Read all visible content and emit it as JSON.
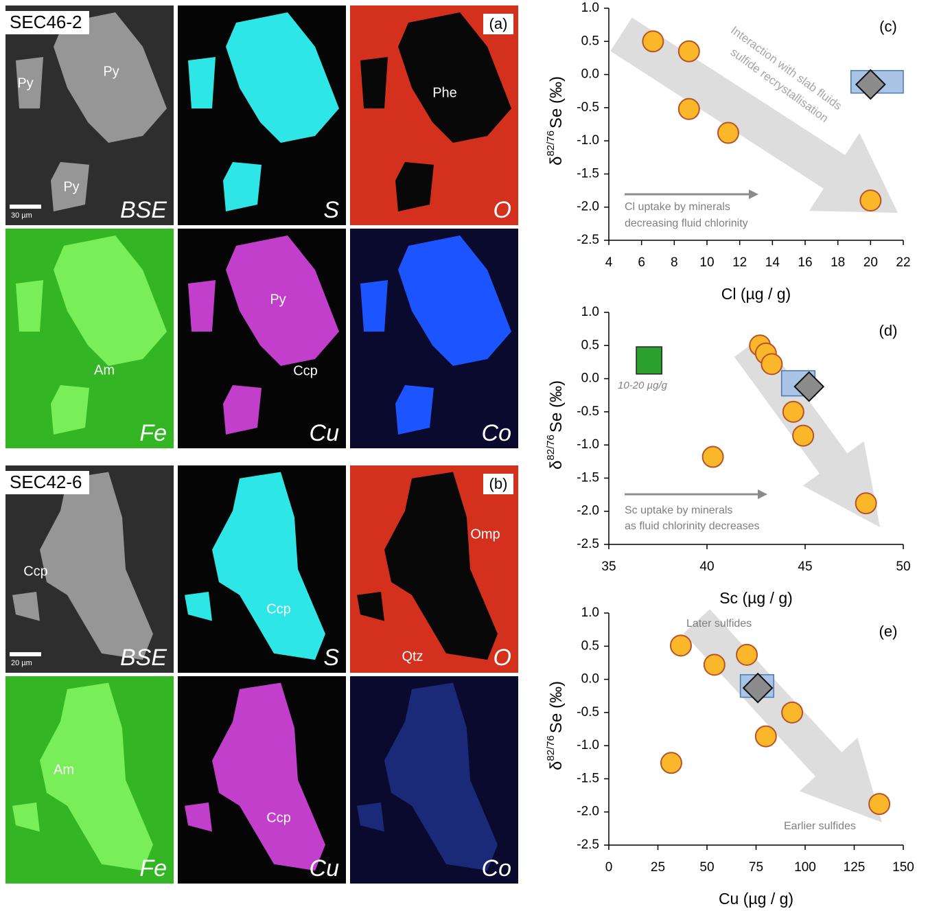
{
  "image_panels": [
    {
      "sample": "SEC46-2",
      "label": "(a)",
      "scale": "30 µm",
      "tiles": [
        {
          "element": "BSE",
          "labels": [
            "Py",
            "Py",
            "Py"
          ]
        },
        {
          "element": "S",
          "labels": []
        },
        {
          "element": "O",
          "labels": [
            "Phe"
          ]
        },
        {
          "element": "Fe",
          "labels": [
            "Am"
          ]
        },
        {
          "element": "Cu",
          "labels": [
            "Py",
            "Ccp"
          ]
        },
        {
          "element": "Co",
          "labels": []
        }
      ]
    },
    {
      "sample": "SEC42-6",
      "label": "(b)",
      "scale": "20 µm",
      "tiles": [
        {
          "element": "BSE",
          "labels": [
            "Ccp"
          ]
        },
        {
          "element": "S",
          "labels": [
            "Ccp"
          ]
        },
        {
          "element": "O",
          "labels": [
            "Omp",
            "Qtz"
          ]
        },
        {
          "element": "Fe",
          "labels": [
            "Am"
          ]
        },
        {
          "element": "Cu",
          "labels": [
            "Ccp"
          ]
        },
        {
          "element": "Co",
          "labels": []
        }
      ]
    }
  ],
  "chart_data": [
    {
      "type": "scatter",
      "panel_label": "(c)",
      "xlabel": "Cl (µg / g)",
      "ylabel": {
        "symbol": "δ",
        "sup": "82/76",
        "main": "Se (‰)"
      },
      "xlim": [
        4,
        22
      ],
      "xticks": [
        4,
        6,
        8,
        10,
        12,
        14,
        16,
        18,
        20,
        22
      ],
      "ylim": [
        -2.5,
        1
      ],
      "yticks": [
        -2.5,
        {
          "value": -2,
          "label": "-2.0"
        },
        -1.5,
        {
          "value": -1,
          "label": "-1.0"
        },
        -0.5,
        {
          "value": 0,
          "label": "0.0"
        },
        0.5,
        {
          "value": 1,
          "label": "1.0"
        }
      ],
      "series": [
        {
          "marker": "circle",
          "color": "#fbb72a",
          "x": [
            6.7,
            8.9,
            8.9,
            11.3,
            20
          ],
          "values": [
            0.5,
            0.35,
            -0.52,
            -0.88,
            -1.9
          ]
        },
        {
          "marker": "diamond",
          "color": "#8c8c8c",
          "x": [
            20
          ],
          "values": [
            -0.15
          ]
        }
      ],
      "ranges": [
        {
          "color": "#a9c4e4",
          "x": [
            18.8,
            22
          ],
          "y": [
            -0.28,
            0.06
          ]
        }
      ],
      "annotations": [
        "Interaction with slab fluids",
        "sulfide recrystallisation",
        "Cl uptake by minerals",
        "decreasing fluid chlorinity"
      ]
    },
    {
      "type": "scatter",
      "panel_label": "(d)",
      "xlabel": "Sc (µg / g)",
      "ylabel": {
        "symbol": "δ",
        "sup": "82/76",
        "main": "Se (‰)"
      },
      "xlim": [
        35,
        50
      ],
      "xticks": [
        35,
        40,
        45,
        50
      ],
      "ylim": [
        -2.5,
        1
      ],
      "yticks": [
        -2.5,
        {
          "value": -2,
          "label": "-2.0"
        },
        -1.5,
        {
          "value": -1,
          "label": "-1.0"
        },
        -0.5,
        {
          "value": 0,
          "label": "0.0"
        },
        0.5,
        {
          "value": 1,
          "label": "1.0"
        }
      ],
      "series": [
        {
          "marker": "circle",
          "color": "#fbb72a",
          "x": [
            42.7,
            43.0,
            43.3,
            44.4,
            44.9,
            40.3,
            48.1
          ],
          "values": [
            0.5,
            0.38,
            0.22,
            -0.5,
            -0.86,
            -1.18,
            -1.88
          ]
        },
        {
          "marker": "diamond",
          "color": "#8c8c8c",
          "x": [
            45.2
          ],
          "values": [
            -0.12
          ]
        }
      ],
      "ranges": [
        {
          "color": "#a9c4e4",
          "x": [
            43.8,
            45.5
          ],
          "y": [
            -0.26,
            0.12
          ]
        },
        {
          "color": "#2ca02c",
          "x": [
            36.4,
            37.7
          ],
          "y": [
            0.07,
            0.48
          ]
        }
      ],
      "annotations": [
        "10-20 µg/g",
        "Sc uptake by minerals",
        "as fluid chlorinity decreases"
      ]
    },
    {
      "type": "scatter",
      "panel_label": "(e)",
      "xlabel": "Cu (µg / g)",
      "ylabel": {
        "symbol": "δ",
        "sup": "82/76",
        "main": "Se (‰)"
      },
      "xlim": [
        0,
        150
      ],
      "xticks": [
        0,
        25,
        50,
        75,
        100,
        125,
        150
      ],
      "ylim": [
        -2.5,
        1
      ],
      "yticks": [
        -2.5,
        {
          "value": -2,
          "label": "-2.0"
        },
        -1.5,
        {
          "value": -1,
          "label": "-1.0"
        },
        -0.5,
        {
          "value": 0,
          "label": "0.0"
        },
        0.5,
        {
          "value": 1,
          "label": "1.0"
        }
      ],
      "series": [
        {
          "marker": "circle",
          "color": "#fbb72a",
          "x": [
            36.7,
            53.8,
            70.3,
            93.4,
            80,
            31.8,
            137.8
          ],
          "values": [
            0.51,
            0.22,
            0.37,
            -0.5,
            -0.86,
            -1.26,
            -1.88
          ]
        },
        {
          "marker": "diamond",
          "color": "#8c8c8c",
          "x": [
            75.9
          ],
          "values": [
            -0.13
          ]
        }
      ],
      "ranges": [
        {
          "color": "#a9c4e4",
          "x": [
            67,
            84
          ],
          "y": [
            -0.27,
            0.07
          ]
        }
      ],
      "annotations": [
        "Later sulfides",
        "Earlier sulfides"
      ]
    }
  ]
}
